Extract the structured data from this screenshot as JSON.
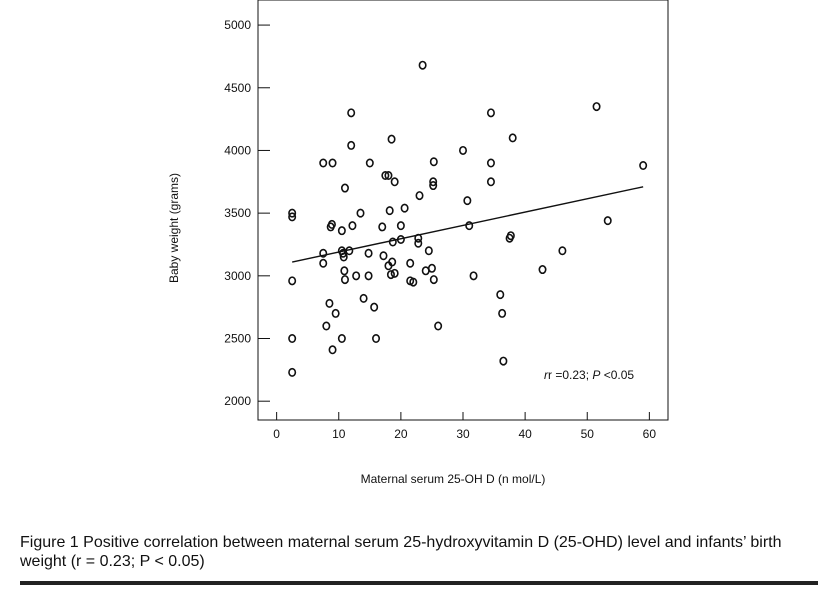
{
  "chart_data": {
    "type": "scatter",
    "xlabel": "Maternal serum 25-OH D (n mol/L)",
    "ylabel": "Baby weight (grams)",
    "xlim": [
      -3,
      63
    ],
    "ylim": [
      1850,
      5200
    ],
    "xticks": [
      0,
      10,
      20,
      30,
      40,
      50,
      60
    ],
    "yticks": [
      2000,
      2500,
      3000,
      3500,
      4000,
      4500,
      5000
    ],
    "annotation": {
      "r_part": "r =0.23; ",
      "p_letter": "P",
      "p_part": " <0.05"
    },
    "trendline": {
      "x": [
        2.5,
        59
      ],
      "y": [
        3110,
        3710
      ]
    },
    "points": [
      {
        "x": 2.5,
        "y": 3500
      },
      {
        "x": 2.5,
        "y": 3470
      },
      {
        "x": 2.5,
        "y": 2960
      },
      {
        "x": 2.5,
        "y": 2500
      },
      {
        "x": 2.5,
        "y": 2230
      },
      {
        "x": 7.5,
        "y": 3900
      },
      {
        "x": 7.5,
        "y": 3180
      },
      {
        "x": 7.5,
        "y": 3100
      },
      {
        "x": 8,
        "y": 2600
      },
      {
        "x": 8.5,
        "y": 2780
      },
      {
        "x": 9,
        "y": 3900
      },
      {
        "x": 8.7,
        "y": 3390
      },
      {
        "x": 8.9,
        "y": 3410
      },
      {
        "x": 9,
        "y": 2410
      },
      {
        "x": 9.5,
        "y": 2700
      },
      {
        "x": 10.5,
        "y": 3360
      },
      {
        "x": 10.5,
        "y": 3200
      },
      {
        "x": 10.7,
        "y": 3180
      },
      {
        "x": 10.8,
        "y": 3150
      },
      {
        "x": 10.9,
        "y": 3040
      },
      {
        "x": 11,
        "y": 2970
      },
      {
        "x": 10.5,
        "y": 2500
      },
      {
        "x": 11,
        "y": 3700
      },
      {
        "x": 11.7,
        "y": 3200
      },
      {
        "x": 12,
        "y": 4300
      },
      {
        "x": 12,
        "y": 4040
      },
      {
        "x": 12.2,
        "y": 3400
      },
      {
        "x": 12.8,
        "y": 3000
      },
      {
        "x": 13.5,
        "y": 3500
      },
      {
        "x": 14,
        "y": 2820
      },
      {
        "x": 15,
        "y": 3900
      },
      {
        "x": 14.8,
        "y": 3180
      },
      {
        "x": 14.8,
        "y": 3000
      },
      {
        "x": 15.7,
        "y": 2750
      },
      {
        "x": 16,
        "y": 2500
      },
      {
        "x": 17,
        "y": 3390
      },
      {
        "x": 17.2,
        "y": 3160
      },
      {
        "x": 17.5,
        "y": 3800
      },
      {
        "x": 18,
        "y": 3800
      },
      {
        "x": 18,
        "y": 3080
      },
      {
        "x": 18.2,
        "y": 3520
      },
      {
        "x": 18.4,
        "y": 3010
      },
      {
        "x": 18.5,
        "y": 4090
      },
      {
        "x": 18.6,
        "y": 3110
      },
      {
        "x": 18.7,
        "y": 3270
      },
      {
        "x": 19,
        "y": 3750
      },
      {
        "x": 19,
        "y": 3020
      },
      {
        "x": 20,
        "y": 3400
      },
      {
        "x": 20,
        "y": 3290
      },
      {
        "x": 20.6,
        "y": 3540
      },
      {
        "x": 21.5,
        "y": 3100
      },
      {
        "x": 21.5,
        "y": 2960
      },
      {
        "x": 22,
        "y": 2950
      },
      {
        "x": 22.8,
        "y": 3300
      },
      {
        "x": 22.8,
        "y": 3260
      },
      {
        "x": 23,
        "y": 3640
      },
      {
        "x": 23.5,
        "y": 4680
      },
      {
        "x": 24,
        "y": 3040
      },
      {
        "x": 24.5,
        "y": 3200
      },
      {
        "x": 25,
        "y": 3060
      },
      {
        "x": 25.2,
        "y": 3750
      },
      {
        "x": 25.2,
        "y": 3720
      },
      {
        "x": 25.3,
        "y": 3910
      },
      {
        "x": 25.3,
        "y": 2970
      },
      {
        "x": 26,
        "y": 2600
      },
      {
        "x": 30,
        "y": 4000
      },
      {
        "x": 30.7,
        "y": 3600
      },
      {
        "x": 31,
        "y": 3400
      },
      {
        "x": 31.7,
        "y": 3000
      },
      {
        "x": 34.5,
        "y": 4300
      },
      {
        "x": 34.5,
        "y": 3900
      },
      {
        "x": 34.5,
        "y": 3750
      },
      {
        "x": 36,
        "y": 2850
      },
      {
        "x": 36.3,
        "y": 2700
      },
      {
        "x": 36.5,
        "y": 2320
      },
      {
        "x": 37.5,
        "y": 3300
      },
      {
        "x": 37.7,
        "y": 3320
      },
      {
        "x": 38,
        "y": 4100
      },
      {
        "x": 42.8,
        "y": 3050
      },
      {
        "x": 46,
        "y": 3200
      },
      {
        "x": 51.5,
        "y": 4350
      },
      {
        "x": 53.3,
        "y": 3440
      },
      {
        "x": 59,
        "y": 3880
      }
    ]
  },
  "caption": "Figure 1 Positive correlation between maternal serum 25-hydroxyvitamin D (25-OHD) level and infants’ birth weight (r = 0.23; P < 0.05)"
}
